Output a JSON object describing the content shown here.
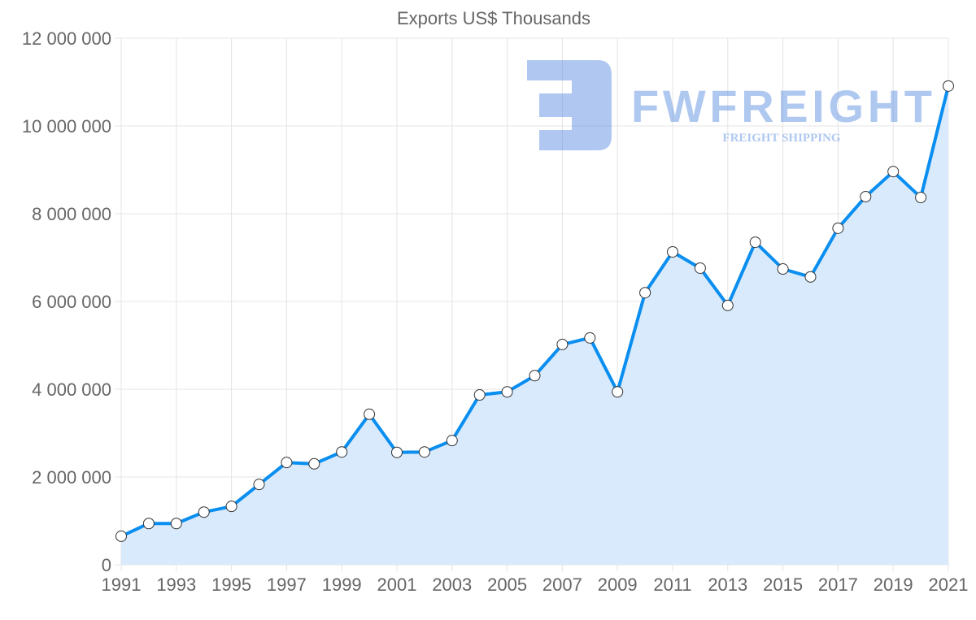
{
  "chart_data": {
    "type": "area",
    "title": "Exports US$ Thousands",
    "xlabel": "",
    "ylabel": "",
    "x": [
      1991,
      1992,
      1993,
      1994,
      1995,
      1996,
      1997,
      1998,
      1999,
      2000,
      2001,
      2002,
      2003,
      2004,
      2005,
      2006,
      2007,
      2008,
      2009,
      2010,
      2011,
      2012,
      2013,
      2014,
      2015,
      2016,
      2017,
      2018,
      2019,
      2020,
      2021
    ],
    "series": [
      {
        "name": "Exports US$ Thousands",
        "values": [
          650000,
          940000,
          940000,
          1200000,
          1330000,
          1830000,
          2330000,
          2300000,
          2570000,
          3430000,
          2560000,
          2570000,
          2830000,
          3870000,
          3940000,
          4310000,
          5020000,
          5170000,
          3940000,
          6200000,
          7130000,
          6760000,
          5910000,
          7350000,
          6740000,
          6560000,
          7670000,
          8390000,
          8960000,
          8370000,
          10910000
        ]
      }
    ],
    "ylim": [
      0,
      12000000
    ],
    "xlim": [
      1991,
      2021
    ],
    "y_ticks": [
      "0",
      "2 000 000",
      "4 000 000",
      "6 000 000",
      "8 000 000",
      "10 000 000",
      "12 000 000"
    ],
    "y_tick_values": [
      0,
      2000000,
      4000000,
      6000000,
      8000000,
      10000000,
      12000000
    ],
    "x_ticks": [
      "1991",
      "1993",
      "1995",
      "1997",
      "1999",
      "2001",
      "2003",
      "2005",
      "2007",
      "2009",
      "2011",
      "2013",
      "2015",
      "2017",
      "2019",
      "2021"
    ],
    "grid": true,
    "legend": "none",
    "colors": {
      "line": "#0a8ef0",
      "fill": "#d8eafc",
      "grid": "#e4e4e4",
      "point_fill": "#ffffff"
    }
  },
  "watermark": {
    "brand": "FWFREIGHT",
    "tagline": "FREIGHT SHIPPING"
  }
}
